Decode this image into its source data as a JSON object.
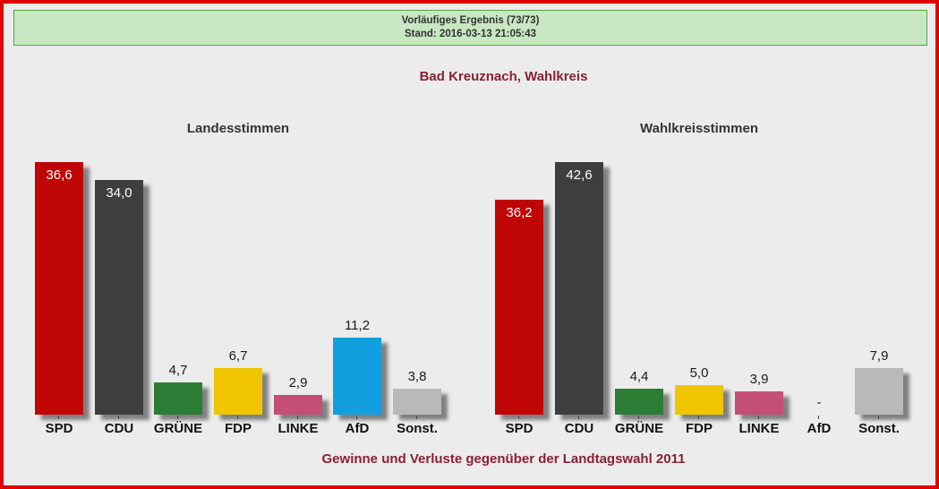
{
  "page": {
    "background": "#ececec",
    "border_color": "#e10000",
    "accent_color": "#8b2033"
  },
  "banner": {
    "status_line": "Vorläufiges Ergebnis (73/73)",
    "timestamp_line": "Stand: 2016-03-13 21:05:43",
    "background": "#c9e7c2",
    "border_color": "#58a14e"
  },
  "title": "Bad Kreuznach, Wahlkreis",
  "footer": "Gewinne und Verluste gegenüber der Landtagswahl 2011",
  "chart_data": [
    {
      "type": "bar",
      "title": "Landesstimmen",
      "categories": [
        "SPD",
        "CDU",
        "GRÜNE",
        "FDP",
        "LINKE",
        "AfD",
        "Sonst."
      ],
      "values": [
        36.6,
        34.0,
        4.7,
        6.7,
        2.9,
        11.2,
        3.8
      ],
      "value_labels": [
        "36,6",
        "34,0",
        "4,7",
        "6,7",
        "2,9",
        "11,2",
        "3,8"
      ],
      "colors": [
        "#c00505",
        "#3e3e3e",
        "#2d7c35",
        "#f0c500",
        "#c44f75",
        "#129fdf",
        "#b9b9b9"
      ],
      "unit": "percent",
      "ylim": [
        0,
        36.6
      ],
      "grid": false,
      "legend": false
    },
    {
      "type": "bar",
      "title": "Wahlkreisstimmen",
      "categories": [
        "SPD",
        "CDU",
        "GRÜNE",
        "FDP",
        "LINKE",
        "AfD",
        "Sonst."
      ],
      "values": [
        36.2,
        42.6,
        4.4,
        5.0,
        3.9,
        null,
        7.9
      ],
      "value_labels": [
        "36,2",
        "42,6",
        "4,4",
        "5,0",
        "3,9",
        "-",
        "7,9"
      ],
      "colors": [
        "#c00505",
        "#3e3e3e",
        "#2d7c35",
        "#f0c500",
        "#c44f75",
        "#129fdf",
        "#b9b9b9"
      ],
      "unit": "percent",
      "ylim": [
        0,
        42.6
      ],
      "grid": false,
      "legend": false
    }
  ]
}
